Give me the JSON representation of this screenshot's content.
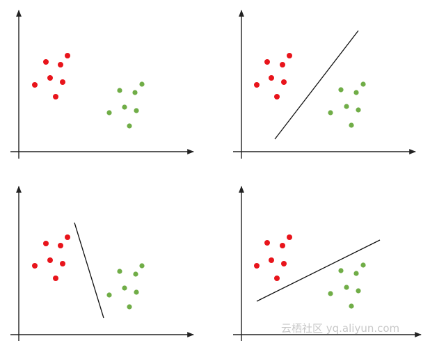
{
  "watermark": "云栖社区 yq.aliyun.com"
}
